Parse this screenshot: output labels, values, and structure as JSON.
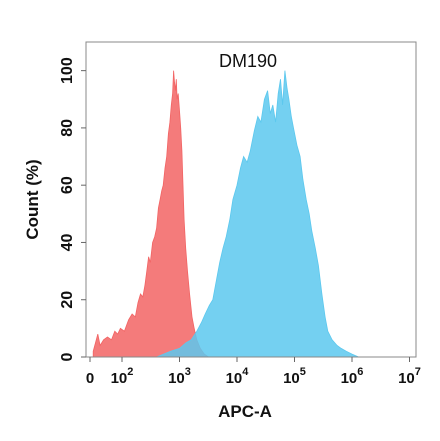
{
  "chart_data": {
    "type": "area",
    "title": "DM190",
    "xlabel": "APC-A",
    "ylabel": "Count (%)",
    "xscale": "log",
    "x_range": [
      0,
      10000000
    ],
    "ylim": [
      0,
      110
    ],
    "grid": false,
    "x_ticks": [
      {
        "value": 0,
        "base": "0",
        "exp": ""
      },
      {
        "value": 100,
        "base": "10",
        "exp": "2"
      },
      {
        "value": 1000,
        "base": "10",
        "exp": "3"
      },
      {
        "value": 10000,
        "base": "10",
        "exp": "4"
      },
      {
        "value": 100000,
        "base": "10",
        "exp": "5"
      },
      {
        "value": 1000000,
        "base": "10",
        "exp": "6"
      },
      {
        "value": 10000000,
        "base": "10",
        "exp": "7"
      }
    ],
    "y_ticks": [
      "0",
      "20",
      "40",
      "60",
      "80",
      "100"
    ],
    "series": [
      {
        "color": "#f26464",
        "opacity": 0.85,
        "points": [
          [
            1,
            2
          ],
          [
            3,
            5
          ],
          [
            6,
            8
          ],
          [
            10,
            4
          ],
          [
            18,
            6
          ],
          [
            30,
            7
          ],
          [
            45,
            6
          ],
          [
            60,
            9
          ],
          [
            75,
            8
          ],
          [
            90,
            10
          ],
          [
            110,
            9
          ],
          [
            130,
            13
          ],
          [
            150,
            15
          ],
          [
            170,
            14
          ],
          [
            190,
            19
          ],
          [
            210,
            22
          ],
          [
            230,
            21
          ],
          [
            250,
            25
          ],
          [
            270,
            30
          ],
          [
            290,
            35
          ],
          [
            310,
            33
          ],
          [
            340,
            40
          ],
          [
            370,
            42
          ],
          [
            400,
            45
          ],
          [
            430,
            52
          ],
          [
            460,
            55
          ],
          [
            490,
            58
          ],
          [
            520,
            60
          ],
          [
            560,
            66
          ],
          [
            600,
            70
          ],
          [
            640,
            78
          ],
          [
            680,
            82
          ],
          [
            720,
            88
          ],
          [
            760,
            92
          ],
          [
            790,
            100
          ],
          [
            820,
            96
          ],
          [
            850,
            93
          ],
          [
            880,
            97
          ],
          [
            910,
            90
          ],
          [
            950,
            92
          ],
          [
            1000,
            86
          ],
          [
            1050,
            80
          ],
          [
            1100,
            72
          ],
          [
            1150,
            60
          ],
          [
            1200,
            48
          ],
          [
            1280,
            38
          ],
          [
            1380,
            30
          ],
          [
            1500,
            22
          ],
          [
            1650,
            14
          ],
          [
            1800,
            10
          ],
          [
            2000,
            6
          ],
          [
            2300,
            3
          ],
          [
            2700,
            1
          ],
          [
            3200,
            0
          ]
        ]
      },
      {
        "color": "#5cc8ee",
        "opacity": 0.85,
        "points": [
          [
            400,
            0
          ],
          [
            700,
            2
          ],
          [
            1000,
            3
          ],
          [
            1300,
            5
          ],
          [
            1600,
            6
          ],
          [
            2000,
            9
          ],
          [
            2400,
            12
          ],
          [
            2800,
            15
          ],
          [
            3300,
            18
          ],
          [
            3800,
            20
          ],
          [
            4400,
            27
          ],
          [
            5000,
            33
          ],
          [
            5700,
            38
          ],
          [
            6500,
            42
          ],
          [
            7500,
            48
          ],
          [
            8500,
            55
          ],
          [
            10000,
            60
          ],
          [
            11500,
            66
          ],
          [
            13000,
            70
          ],
          [
            15000,
            68
          ],
          [
            17000,
            72
          ],
          [
            20000,
            79
          ],
          [
            23000,
            84
          ],
          [
            26000,
            82
          ],
          [
            30000,
            90
          ],
          [
            34000,
            93
          ],
          [
            38000,
            85
          ],
          [
            42000,
            88
          ],
          [
            47000,
            82
          ],
          [
            52000,
            92
          ],
          [
            57000,
            97
          ],
          [
            62000,
            88
          ],
          [
            68000,
            100
          ],
          [
            74000,
            94
          ],
          [
            80000,
            90
          ],
          [
            88000,
            84
          ],
          [
            96000,
            80
          ],
          [
            110000,
            74
          ],
          [
            125000,
            70
          ],
          [
            140000,
            62
          ],
          [
            160000,
            55
          ],
          [
            180000,
            50
          ],
          [
            200000,
            44
          ],
          [
            230000,
            38
          ],
          [
            260000,
            32
          ],
          [
            300000,
            22
          ],
          [
            340000,
            14
          ],
          [
            380000,
            9
          ],
          [
            450000,
            6
          ],
          [
            550000,
            4
          ],
          [
            650000,
            3
          ],
          [
            800000,
            2
          ],
          [
            1000000,
            1
          ],
          [
            1300000,
            0
          ]
        ]
      }
    ]
  }
}
